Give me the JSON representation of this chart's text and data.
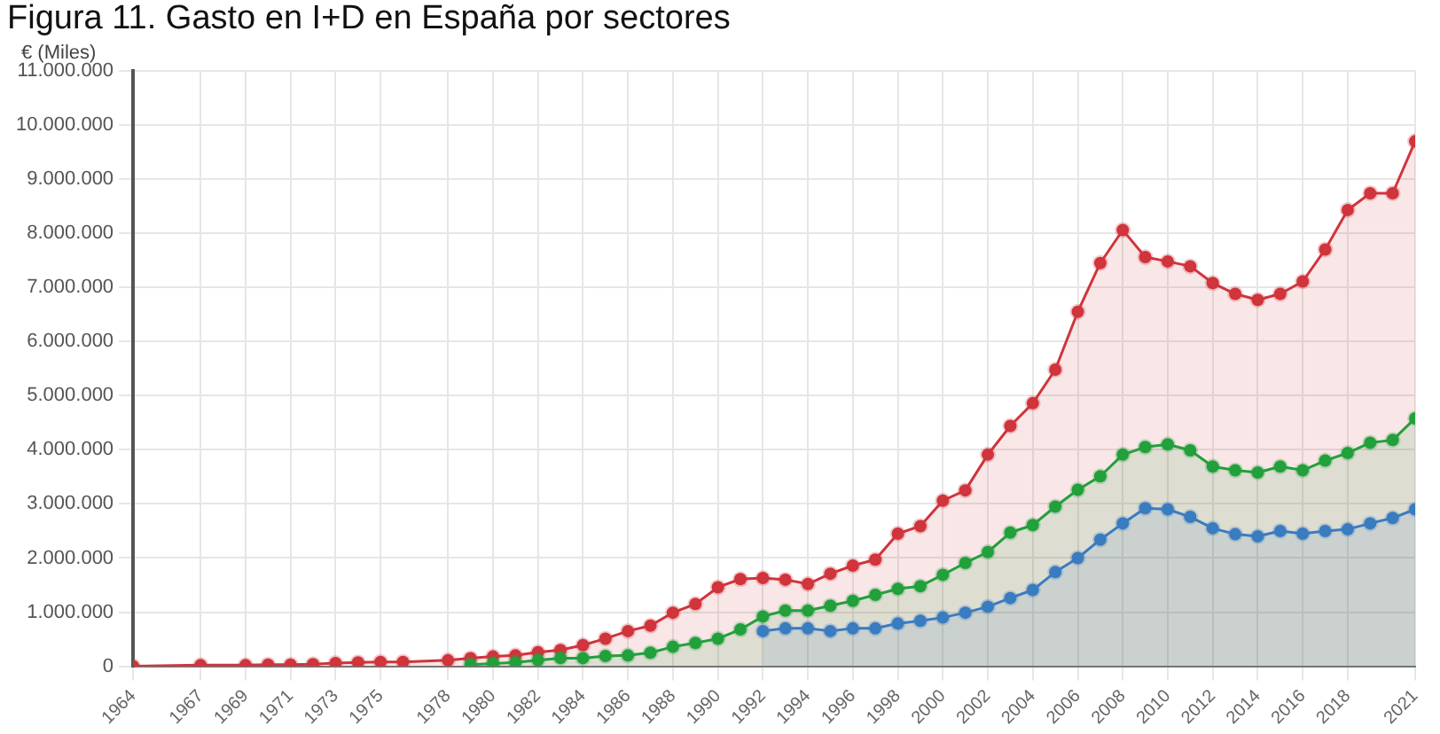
{
  "chart_data": {
    "type": "area",
    "title": "Figura 11. Gasto en I+D en España por sectores",
    "ylabel": "€ (Miles)",
    "xlim": [
      1964,
      2021
    ],
    "xticks": [
      1964,
      1967,
      1969,
      1971,
      1973,
      1975,
      1978,
      1980,
      1982,
      1984,
      1986,
      1988,
      1990,
      1992,
      1994,
      1996,
      1998,
      2000,
      2002,
      2004,
      2006,
      2008,
      2010,
      2012,
      2014,
      2016,
      2018,
      2021
    ],
    "ylim": [
      0,
      11000000
    ],
    "yticks": [
      {
        "value": 0,
        "label": "0"
      },
      {
        "value": 1000000,
        "label": "1.000.000"
      },
      {
        "value": 2000000,
        "label": "2.000.000"
      },
      {
        "value": 3000000,
        "label": "3.000.000"
      },
      {
        "value": 4000000,
        "label": "4.000.000"
      },
      {
        "value": 5000000,
        "label": "5.000.000"
      },
      {
        "value": 6000000,
        "label": "6.000.000"
      },
      {
        "value": 7000000,
        "label": "7.000.000"
      },
      {
        "value": 8000000,
        "label": "8.000.000"
      },
      {
        "value": 9000000,
        "label": "9.000.000"
      },
      {
        "value": 10000000,
        "label": "10.000.000"
      },
      {
        "value": 11000000,
        "label": "11.000.000"
      }
    ],
    "grid": true,
    "legend": false,
    "marker": "circle",
    "series": [
      {
        "color": "#d0343c",
        "x": [
          1964,
          1967,
          1969,
          1970,
          1971,
          1972,
          1973,
          1974,
          1975,
          1976,
          1978,
          1979,
          1980,
          1981,
          1982,
          1983,
          1984,
          1985,
          1986,
          1987,
          1988,
          1989,
          1990,
          1991,
          1992,
          1993,
          1994,
          1995,
          1996,
          1997,
          1998,
          1999,
          2000,
          2001,
          2002,
          2003,
          2004,
          2005,
          2006,
          2007,
          2008,
          2009,
          2010,
          2011,
          2012,
          2013,
          2014,
          2015,
          2016,
          2017,
          2018,
          2019,
          2020,
          2021
        ],
        "values": [
          0,
          20000,
          20000,
          30000,
          30000,
          40000,
          60000,
          70000,
          80000,
          80000,
          110000,
          150000,
          180000,
          200000,
          260000,
          300000,
          390000,
          510000,
          650000,
          750000,
          990000,
          1150000,
          1460000,
          1610000,
          1630000,
          1600000,
          1520000,
          1710000,
          1860000,
          1970000,
          2450000,
          2590000,
          3060000,
          3250000,
          3910000,
          4440000,
          4860000,
          5480000,
          6550000,
          7450000,
          8060000,
          7560000,
          7480000,
          7390000,
          7080000,
          6880000,
          6770000,
          6880000,
          7110000,
          7700000,
          8430000,
          8740000,
          8740000,
          9700000
        ]
      },
      {
        "color": "#22a03c",
        "x": [
          1979,
          1980,
          1981,
          1982,
          1983,
          1984,
          1985,
          1986,
          1987,
          1988,
          1989,
          1990,
          1991,
          1992,
          1993,
          1994,
          1995,
          1996,
          1997,
          1998,
          1999,
          2000,
          2001,
          2002,
          2003,
          2004,
          2005,
          2006,
          2007,
          2008,
          2009,
          2010,
          2011,
          2012,
          2013,
          2014,
          2015,
          2016,
          2017,
          2018,
          2019,
          2020,
          2021
        ],
        "values": [
          30000,
          50000,
          70000,
          110000,
          150000,
          150000,
          190000,
          200000,
          250000,
          360000,
          430000,
          510000,
          680000,
          920000,
          1030000,
          1030000,
          1120000,
          1210000,
          1320000,
          1430000,
          1480000,
          1690000,
          1910000,
          2110000,
          2470000,
          2610000,
          2950000,
          3260000,
          3510000,
          3910000,
          4050000,
          4100000,
          3990000,
          3690000,
          3620000,
          3580000,
          3690000,
          3620000,
          3800000,
          3940000,
          4130000,
          4180000,
          4580000
        ]
      },
      {
        "color": "#3a7cc0",
        "x": [
          1992,
          1993,
          1994,
          1995,
          1996,
          1997,
          1998,
          1999,
          2000,
          2001,
          2002,
          2003,
          2004,
          2005,
          2006,
          2007,
          2008,
          2009,
          2010,
          2011,
          2012,
          2013,
          2014,
          2015,
          2016,
          2017,
          2018,
          2019,
          2020,
          2021
        ],
        "values": [
          650000,
          700000,
          700000,
          650000,
          700000,
          700000,
          790000,
          840000,
          900000,
          990000,
          1100000,
          1260000,
          1410000,
          1740000,
          2000000,
          2340000,
          2640000,
          2920000,
          2900000,
          2760000,
          2550000,
          2440000,
          2400000,
          2500000,
          2450000,
          2500000,
          2530000,
          2640000,
          2740000,
          2900000
        ]
      }
    ]
  }
}
